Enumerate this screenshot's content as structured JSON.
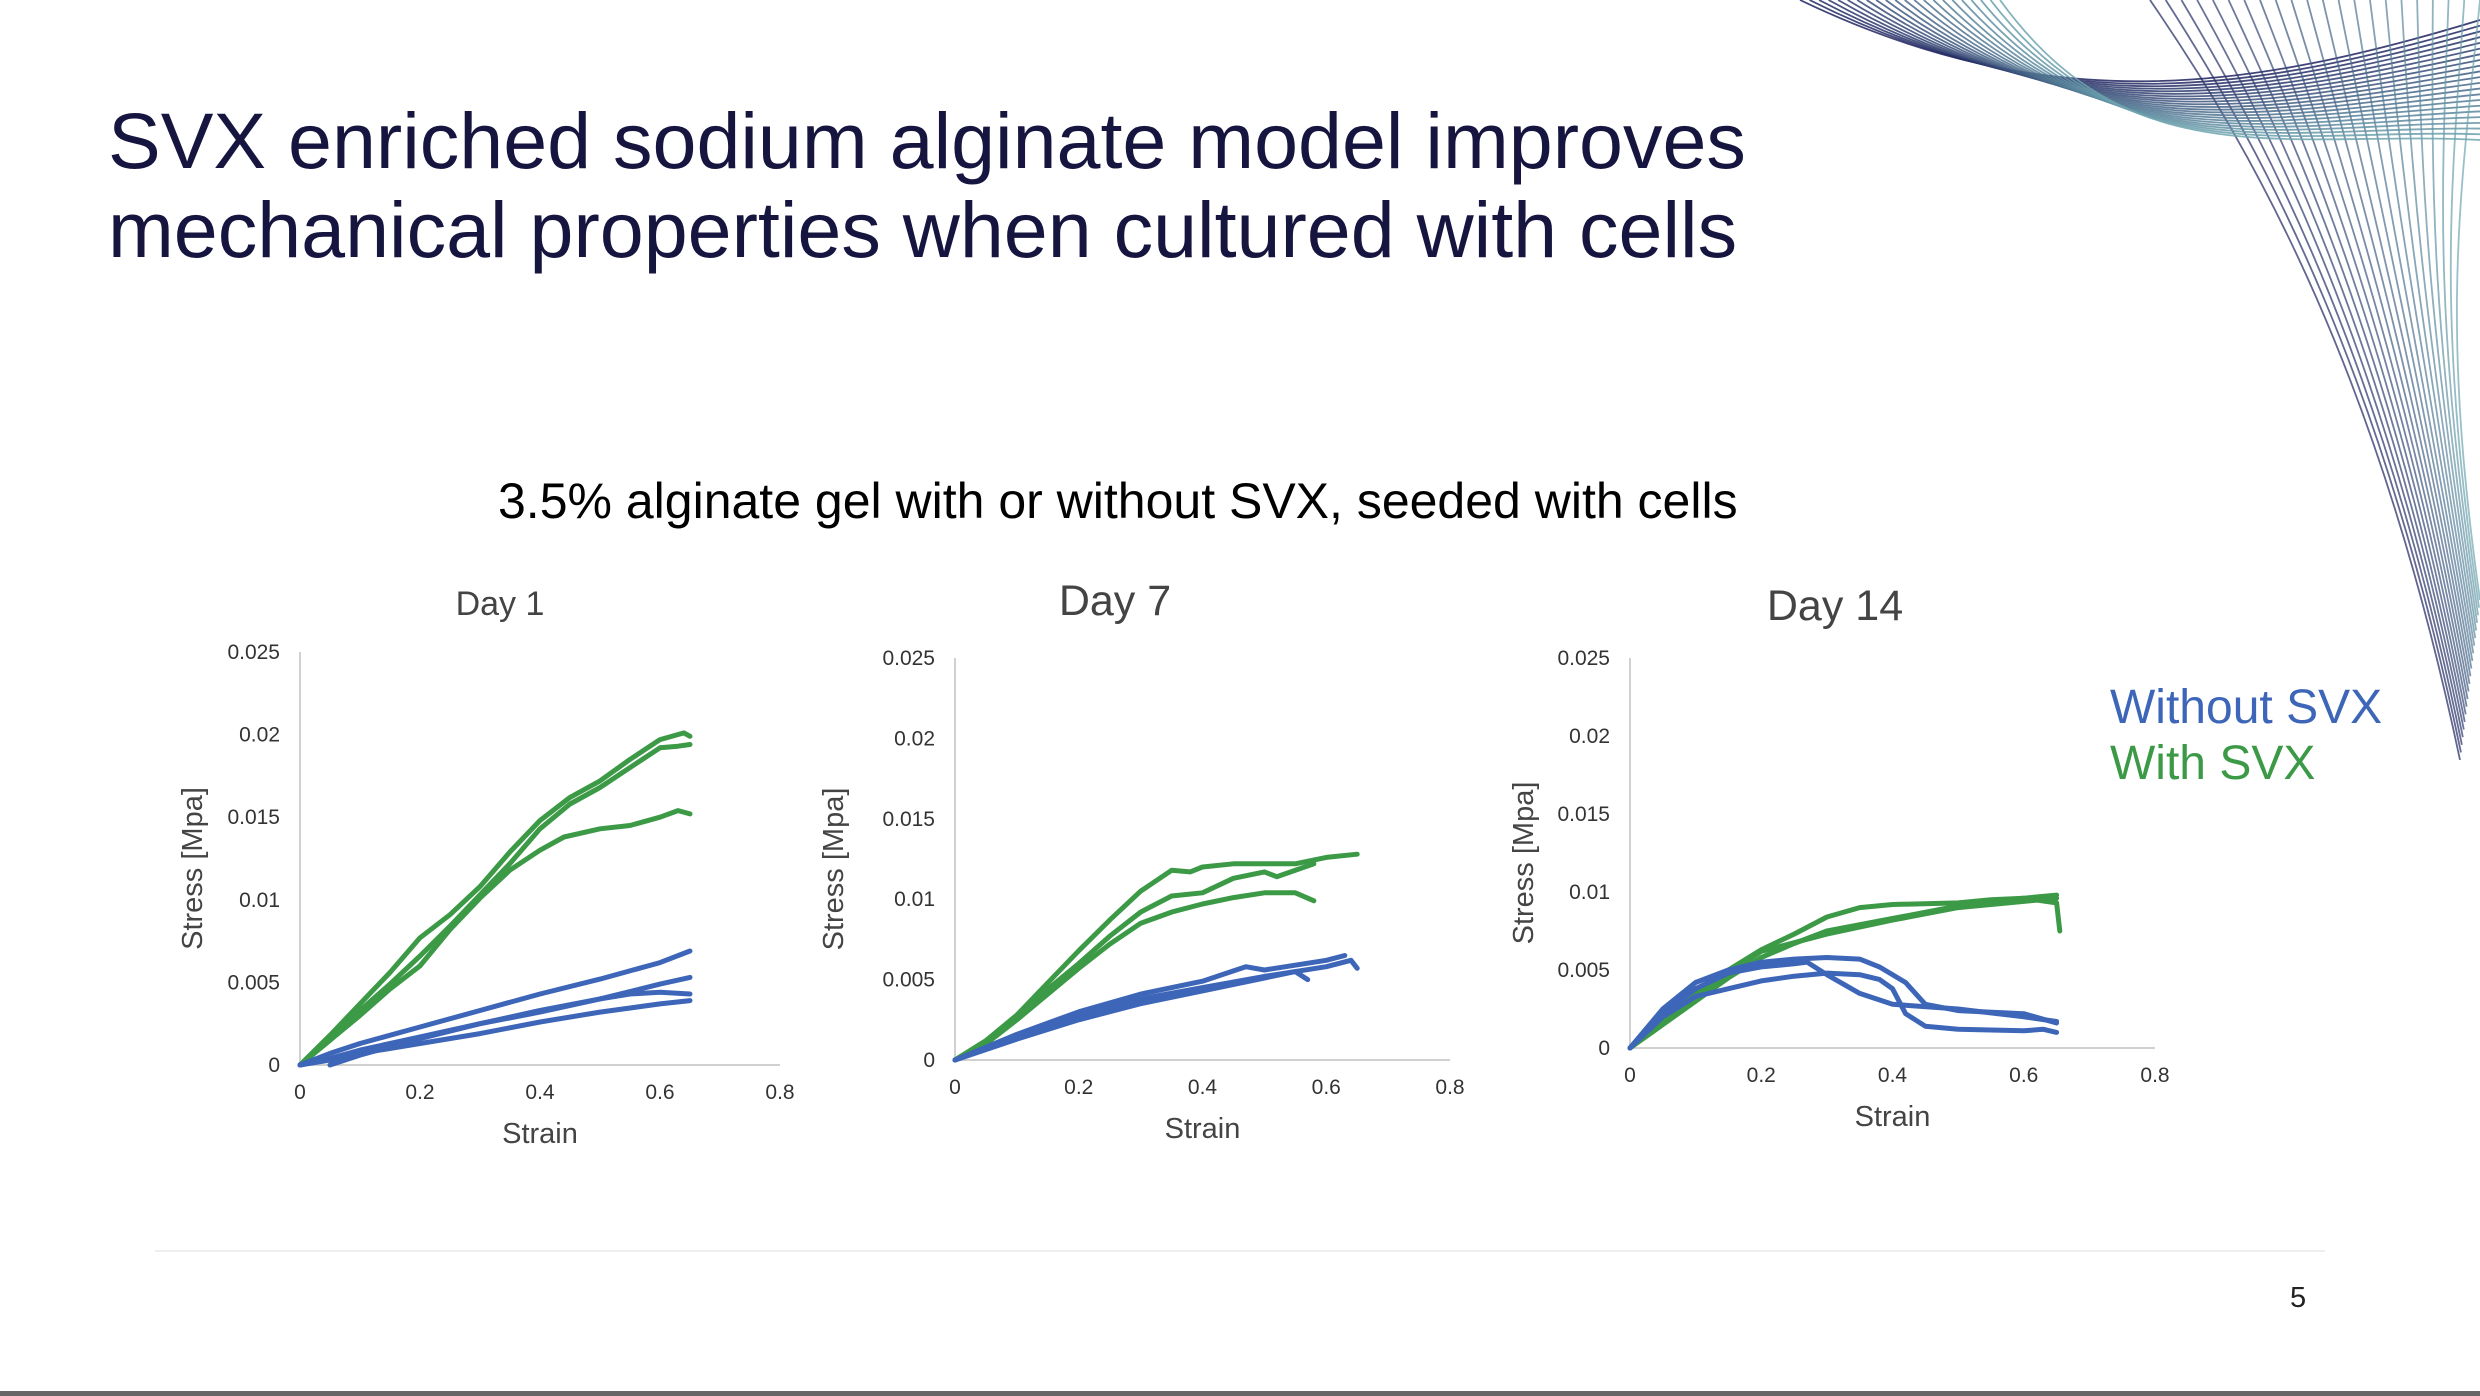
{
  "slide": {
    "title_lines": [
      "SVX enriched sodium alginate model improves",
      "mechanical properties when cultured with cells"
    ],
    "subtitle": "3.5% alginate gel with or without SVX, seeded with cells",
    "page_number": "5"
  },
  "legend": {
    "without": "Without SVX",
    "with": "With SVX"
  },
  "colors": {
    "without_svx": "#3d66b8",
    "with_svx": "#3c9a47",
    "title": "#16153f",
    "axis": "#d0d0d0",
    "tick_text": "#333333"
  },
  "chart_data": [
    {
      "type": "line",
      "title": "Day 1",
      "xlabel": "Strain",
      "ylabel": "Stress [Mpa]",
      "xlim": [
        0,
        0.8
      ],
      "ylim": [
        0,
        0.025
      ],
      "xticks": [
        "0",
        "0.2",
        "0.4",
        "0.6",
        "0.8"
      ],
      "yticks": [
        "0",
        "0.005",
        "0.01",
        "0.015",
        "0.02",
        "0.025"
      ],
      "series": [
        {
          "group": "with",
          "points": [
            [
              0,
              0
            ],
            [
              0.05,
              0.0018
            ],
            [
              0.1,
              0.0037
            ],
            [
              0.15,
              0.0056
            ],
            [
              0.2,
              0.0077
            ],
            [
              0.25,
              0.0091
            ],
            [
              0.3,
              0.0108
            ],
            [
              0.35,
              0.0129
            ],
            [
              0.4,
              0.0148
            ],
            [
              0.45,
              0.0162
            ],
            [
              0.5,
              0.0172
            ],
            [
              0.55,
              0.0185
            ],
            [
              0.6,
              0.0197
            ],
            [
              0.64,
              0.0201
            ],
            [
              0.65,
              0.0199
            ]
          ]
        },
        {
          "group": "with",
          "points": [
            [
              0,
              0
            ],
            [
              0.05,
              0.0015
            ],
            [
              0.1,
              0.0033
            ],
            [
              0.15,
              0.0049
            ],
            [
              0.2,
              0.0066
            ],
            [
              0.25,
              0.0084
            ],
            [
              0.3,
              0.0103
            ],
            [
              0.35,
              0.0122
            ],
            [
              0.4,
              0.0143
            ],
            [
              0.45,
              0.0158
            ],
            [
              0.5,
              0.0168
            ],
            [
              0.55,
              0.018
            ],
            [
              0.6,
              0.0192
            ],
            [
              0.63,
              0.0193
            ],
            [
              0.65,
              0.0194
            ]
          ]
        },
        {
          "group": "with",
          "points": [
            [
              0,
              0
            ],
            [
              0.05,
              0.0015
            ],
            [
              0.1,
              0.003
            ],
            [
              0.15,
              0.0046
            ],
            [
              0.2,
              0.006
            ],
            [
              0.25,
              0.0082
            ],
            [
              0.3,
              0.0101
            ],
            [
              0.35,
              0.0118
            ],
            [
              0.4,
              0.013
            ],
            [
              0.44,
              0.0138
            ],
            [
              0.5,
              0.0143
            ],
            [
              0.55,
              0.0145
            ],
            [
              0.6,
              0.015
            ],
            [
              0.63,
              0.0154
            ],
            [
              0.65,
              0.0152
            ]
          ]
        },
        {
          "group": "without",
          "points": [
            [
              0,
              0
            ],
            [
              0.05,
              0.0007
            ],
            [
              0.1,
              0.0013
            ],
            [
              0.2,
              0.0023
            ],
            [
              0.3,
              0.0033
            ],
            [
              0.4,
              0.0043
            ],
            [
              0.5,
              0.0052
            ],
            [
              0.6,
              0.0062
            ],
            [
              0.65,
              0.0069
            ]
          ]
        },
        {
          "group": "without",
          "points": [
            [
              0,
              0
            ],
            [
              0.05,
              0.0004
            ],
            [
              0.1,
              0.0009
            ],
            [
              0.2,
              0.0017
            ],
            [
              0.3,
              0.0025
            ],
            [
              0.4,
              0.0032
            ],
            [
              0.5,
              0.004
            ],
            [
              0.6,
              0.0049
            ],
            [
              0.65,
              0.0053
            ]
          ]
        },
        {
          "group": "without",
          "points": [
            [
              0,
              0
            ],
            [
              0.05,
              0.0003
            ],
            [
              0.1,
              0.0007
            ],
            [
              0.2,
              0.0013
            ],
            [
              0.3,
              0.0019
            ],
            [
              0.4,
              0.0026
            ],
            [
              0.5,
              0.0032
            ],
            [
              0.6,
              0.0037
            ],
            [
              0.65,
              0.0039
            ]
          ]
        },
        {
          "group": "without",
          "points": [
            [
              0.05,
              0
            ],
            [
              0.1,
              0.0006
            ],
            [
              0.2,
              0.0016
            ],
            [
              0.3,
              0.0025
            ],
            [
              0.4,
              0.0033
            ],
            [
              0.5,
              0.004
            ],
            [
              0.55,
              0.0043
            ],
            [
              0.6,
              0.0044
            ],
            [
              0.65,
              0.0043
            ]
          ]
        }
      ]
    },
    {
      "type": "line",
      "title": "Day 7",
      "xlabel": "Strain",
      "ylabel": "Stress [Mpa]",
      "xlim": [
        0,
        0.8
      ],
      "ylim": [
        0,
        0.025
      ],
      "xticks": [
        "0",
        "0.2",
        "0.4",
        "0.6",
        "0.8"
      ],
      "yticks": [
        "0",
        "0.005",
        "0.01",
        "0.015",
        "0.02",
        "0.025"
      ],
      "series": [
        {
          "group": "with",
          "points": [
            [
              0,
              0
            ],
            [
              0.05,
              0.0012
            ],
            [
              0.1,
              0.0028
            ],
            [
              0.15,
              0.0048
            ],
            [
              0.2,
              0.0068
            ],
            [
              0.25,
              0.0087
            ],
            [
              0.3,
              0.0105
            ],
            [
              0.35,
              0.0118
            ],
            [
              0.38,
              0.0117
            ],
            [
              0.4,
              0.012
            ],
            [
              0.45,
              0.0122
            ],
            [
              0.5,
              0.0122
            ],
            [
              0.55,
              0.0122
            ],
            [
              0.6,
              0.0126
            ],
            [
              0.65,
              0.0128
            ]
          ]
        },
        {
          "group": "with",
          "points": [
            [
              0,
              0
            ],
            [
              0.05,
              0.0012
            ],
            [
              0.1,
              0.0027
            ],
            [
              0.15,
              0.0044
            ],
            [
              0.2,
              0.006
            ],
            [
              0.25,
              0.0077
            ],
            [
              0.3,
              0.0092
            ],
            [
              0.35,
              0.0102
            ],
            [
              0.4,
              0.0104
            ],
            [
              0.45,
              0.0113
            ],
            [
              0.5,
              0.0117
            ],
            [
              0.52,
              0.0114
            ],
            [
              0.55,
              0.0118
            ],
            [
              0.58,
              0.0122
            ]
          ]
        },
        {
          "group": "with",
          "points": [
            [
              0,
              0
            ],
            [
              0.05,
              0.001
            ],
            [
              0.1,
              0.0025
            ],
            [
              0.15,
              0.0041
            ],
            [
              0.2,
              0.0057
            ],
            [
              0.25,
              0.0072
            ],
            [
              0.3,
              0.0085
            ],
            [
              0.35,
              0.0092
            ],
            [
              0.4,
              0.0097
            ],
            [
              0.45,
              0.0101
            ],
            [
              0.5,
              0.0104
            ],
            [
              0.55,
              0.0104
            ],
            [
              0.58,
              0.0099
            ]
          ]
        },
        {
          "group": "without",
          "points": [
            [
              0,
              0
            ],
            [
              0.1,
              0.0016
            ],
            [
              0.2,
              0.003
            ],
            [
              0.3,
              0.0041
            ],
            [
              0.4,
              0.0049
            ],
            [
              0.47,
              0.0058
            ],
            [
              0.5,
              0.0056
            ],
            [
              0.6,
              0.0062
            ],
            [
              0.63,
              0.0065
            ]
          ]
        },
        {
          "group": "without",
          "points": [
            [
              0,
              0
            ],
            [
              0.1,
              0.0014
            ],
            [
              0.2,
              0.0028
            ],
            [
              0.3,
              0.0038
            ],
            [
              0.4,
              0.0045
            ],
            [
              0.5,
              0.0052
            ],
            [
              0.6,
              0.0058
            ],
            [
              0.64,
              0.0062
            ],
            [
              0.65,
              0.0057
            ]
          ]
        },
        {
          "group": "without",
          "points": [
            [
              0,
              0
            ],
            [
              0.1,
              0.0013
            ],
            [
              0.2,
              0.0025
            ],
            [
              0.3,
              0.0035
            ],
            [
              0.4,
              0.0043
            ],
            [
              0.5,
              0.0051
            ],
            [
              0.55,
              0.0055
            ],
            [
              0.57,
              0.005
            ]
          ]
        }
      ]
    },
    {
      "type": "line",
      "title": "Day 14",
      "xlabel": "Strain",
      "ylabel": "Stress [Mpa]",
      "xlim": [
        0,
        0.8
      ],
      "ylim": [
        0,
        0.025
      ],
      "xticks": [
        "0",
        "0.2",
        "0.4",
        "0.6",
        "0.8"
      ],
      "yticks": [
        "0",
        "0.005",
        "0.01",
        "0.015",
        "0.02",
        "0.025"
      ],
      "series": [
        {
          "group": "with",
          "points": [
            [
              0,
              0
            ],
            [
              0.05,
              0.0018
            ],
            [
              0.1,
              0.0035
            ],
            [
              0.15,
              0.005
            ],
            [
              0.2,
              0.0063
            ],
            [
              0.25,
              0.0073
            ],
            [
              0.3,
              0.0084
            ],
            [
              0.35,
              0.009
            ],
            [
              0.4,
              0.0092
            ],
            [
              0.5,
              0.0093
            ],
            [
              0.55,
              0.0095
            ],
            [
              0.6,
              0.0096
            ],
            [
              0.65,
              0.0093
            ],
            [
              0.655,
              0.0075
            ]
          ]
        },
        {
          "group": "with",
          "points": [
            [
              0,
              0
            ],
            [
              0.05,
              0.0015
            ],
            [
              0.1,
              0.003
            ],
            [
              0.15,
              0.0045
            ],
            [
              0.2,
              0.0058
            ],
            [
              0.25,
              0.0067
            ],
            [
              0.3,
              0.0075
            ],
            [
              0.4,
              0.0083
            ],
            [
              0.5,
              0.0091
            ],
            [
              0.55,
              0.0094
            ],
            [
              0.6,
              0.0096
            ],
            [
              0.65,
              0.0098
            ]
          ]
        },
        {
          "group": "with",
          "points": [
            [
              0,
              0
            ],
            [
              0.05,
              0.0017
            ],
            [
              0.1,
              0.0034
            ],
            [
              0.15,
              0.0048
            ],
            [
              0.2,
              0.0062
            ],
            [
              0.3,
              0.0073
            ],
            [
              0.4,
              0.0082
            ],
            [
              0.5,
              0.009
            ],
            [
              0.6,
              0.0094
            ],
            [
              0.65,
              0.0096
            ]
          ]
        },
        {
          "group": "without",
          "points": [
            [
              0,
              0
            ],
            [
              0.05,
              0.0025
            ],
            [
              0.1,
              0.0042
            ],
            [
              0.15,
              0.005
            ],
            [
              0.2,
              0.0055
            ],
            [
              0.25,
              0.0057
            ],
            [
              0.3,
              0.0058
            ],
            [
              0.35,
              0.0057
            ],
            [
              0.38,
              0.0052
            ],
            [
              0.42,
              0.0042
            ],
            [
              0.45,
              0.0028
            ],
            [
              0.5,
              0.0024
            ],
            [
              0.6,
              0.0022
            ],
            [
              0.65,
              0.0016
            ]
          ]
        },
        {
          "group": "without",
          "points": [
            [
              0,
              0
            ],
            [
              0.05,
              0.0022
            ],
            [
              0.1,
              0.0038
            ],
            [
              0.15,
              0.0048
            ],
            [
              0.2,
              0.0052
            ],
            [
              0.25,
              0.0054
            ],
            [
              0.27,
              0.0055
            ],
            [
              0.3,
              0.0047
            ],
            [
              0.35,
              0.0035
            ],
            [
              0.4,
              0.0028
            ],
            [
              0.5,
              0.0025
            ],
            [
              0.6,
              0.002
            ],
            [
              0.65,
              0.0017
            ]
          ]
        },
        {
          "group": "without",
          "points": [
            [
              0,
              0
            ],
            [
              0.05,
              0.002
            ],
            [
              0.1,
              0.0033
            ],
            [
              0.15,
              0.0038
            ],
            [
              0.2,
              0.0043
            ],
            [
              0.25,
              0.0046
            ],
            [
              0.3,
              0.0048
            ],
            [
              0.35,
              0.0047
            ],
            [
              0.38,
              0.0044
            ],
            [
              0.4,
              0.0038
            ],
            [
              0.42,
              0.0022
            ],
            [
              0.45,
              0.0014
            ],
            [
              0.5,
              0.0012
            ],
            [
              0.6,
              0.0011
            ],
            [
              0.63,
              0.0012
            ],
            [
              0.65,
              0.001
            ]
          ]
        }
      ]
    }
  ]
}
